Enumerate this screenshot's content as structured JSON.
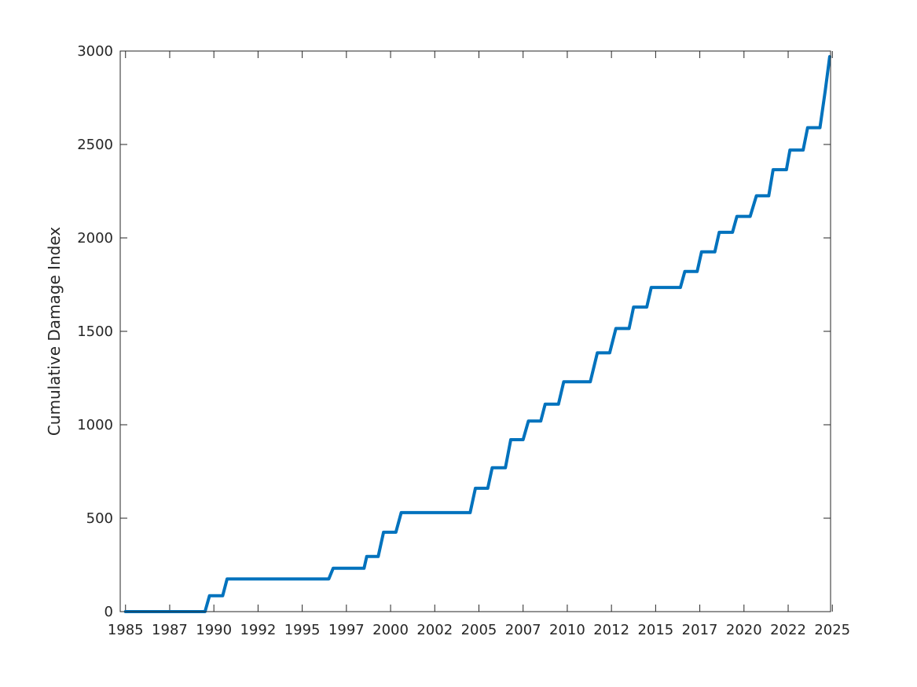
{
  "chart_data": {
    "type": "line",
    "title": "",
    "xlabel": "",
    "ylabel": "Cumulative Damage Index",
    "xlim": [
      1985.7,
      2025.9
    ],
    "ylim": [
      0,
      3000
    ],
    "xticks": [
      1986,
      1988.5,
      1991,
      1993.5,
      1996,
      1998.5,
      2001,
      2003.5,
      2006,
      2008.5,
      2011,
      2013.5,
      2016,
      2018.5,
      2021,
      2023.5,
      2026
    ],
    "xtick_labels": [
      "1985",
      "1987",
      "1990",
      "1992",
      "1995",
      "1997",
      "2000",
      "2002",
      "2005",
      "2007",
      "2010",
      "2012",
      "2015",
      "2017",
      "2020",
      "2022",
      "2025"
    ],
    "yticks": [
      0,
      500,
      1000,
      1500,
      2000,
      2500,
      3000
    ],
    "ytick_labels": [
      "0",
      "500",
      "1000",
      "1500",
      "2000",
      "2500",
      "3000"
    ],
    "grid": false,
    "line_color": "#0072BD",
    "series": [
      {
        "x": [
          1986.0,
          1990.5,
          1990.75,
          1991.5,
          1991.75,
          1997.5,
          1997.75,
          1999.5,
          1999.65,
          2000.3,
          2000.6,
          2001.3,
          2001.6,
          2005.5,
          2005.8,
          2006.5,
          2006.75,
          2007.5,
          2007.8,
          2008.5,
          2008.8,
          2009.5,
          2009.75,
          2010.5,
          2010.8,
          2012.3,
          2012.7,
          2013.4,
          2013.75,
          2014.5,
          2014.75,
          2015.5,
          2015.75,
          2017.4,
          2017.65,
          2018.35,
          2018.6,
          2019.35,
          2019.6,
          2020.35,
          2020.6,
          2021.35,
          2021.7,
          2022.4,
          2022.65,
          2023.4,
          2023.6,
          2024.35,
          2024.6,
          2025.3,
          2025.6,
          2025.85
        ],
        "y": [
          0,
          0,
          85,
          85,
          175,
          175,
          232,
          232,
          295,
          295,
          425,
          425,
          530,
          530,
          660,
          660,
          770,
          770,
          920,
          920,
          1020,
          1020,
          1110,
          1110,
          1230,
          1230,
          1385,
          1385,
          1515,
          1515,
          1630,
          1630,
          1735,
          1735,
          1820,
          1820,
          1925,
          1925,
          2030,
          2030,
          2115,
          2115,
          2225,
          2225,
          2365,
          2365,
          2470,
          2470,
          2590,
          2590,
          2790,
          2970
        ]
      }
    ]
  }
}
